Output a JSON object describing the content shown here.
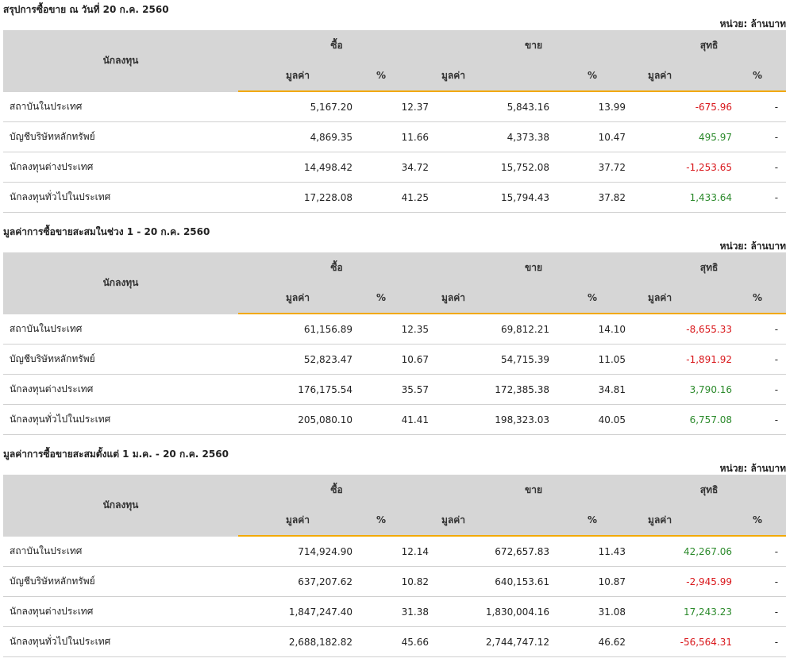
{
  "sections": [
    {
      "title": "สรุปการซื้อขาย ณ วันที่ 20 ก.ค. 2560",
      "unit": "หน่วย: ล้านบาท",
      "rows": [
        {
          "name": "สถาบันในประเทศ",
          "buy": "5,167.20",
          "buy_pct": "12.37",
          "sell": "5,843.16",
          "sell_pct": "13.99",
          "net": "-675.96",
          "net_pct": "-"
        },
        {
          "name": "บัญชีบริษัทหลักทรัพย์",
          "buy": "4,869.35",
          "buy_pct": "11.66",
          "sell": "4,373.38",
          "sell_pct": "10.47",
          "net": "495.97",
          "net_pct": "-"
        },
        {
          "name": "นักลงทุนต่างประเทศ",
          "buy": "14,498.42",
          "buy_pct": "34.72",
          "sell": "15,752.08",
          "sell_pct": "37.72",
          "net": "-1,253.65",
          "net_pct": "-"
        },
        {
          "name": "นักลงทุนทั่วไปในประเทศ",
          "buy": "17,228.08",
          "buy_pct": "41.25",
          "sell": "15,794.43",
          "sell_pct": "37.82",
          "net": "1,433.64",
          "net_pct": "-"
        }
      ]
    },
    {
      "title": "มูลค่าการซื้อขายสะสมในช่วง 1 - 20 ก.ค. 2560",
      "unit": "หน่วย: ล้านบาท",
      "rows": [
        {
          "name": "สถาบันในประเทศ",
          "buy": "61,156.89",
          "buy_pct": "12.35",
          "sell": "69,812.21",
          "sell_pct": "14.10",
          "net": "-8,655.33",
          "net_pct": "-"
        },
        {
          "name": "บัญชีบริษัทหลักทรัพย์",
          "buy": "52,823.47",
          "buy_pct": "10.67",
          "sell": "54,715.39",
          "sell_pct": "11.05",
          "net": "-1,891.92",
          "net_pct": "-"
        },
        {
          "name": "นักลงทุนต่างประเทศ",
          "buy": "176,175.54",
          "buy_pct": "35.57",
          "sell": "172,385.38",
          "sell_pct": "34.81",
          "net": "3,790.16",
          "net_pct": "-"
        },
        {
          "name": "นักลงทุนทั่วไปในประเทศ",
          "buy": "205,080.10",
          "buy_pct": "41.41",
          "sell": "198,323.03",
          "sell_pct": "40.05",
          "net": "6,757.08",
          "net_pct": "-"
        }
      ]
    },
    {
      "title": "มูลค่าการซื้อขายสะสมตั้งแต่ 1 ม.ค. - 20 ก.ค. 2560",
      "unit": "หน่วย: ล้านบาท",
      "rows": [
        {
          "name": "สถาบันในประเทศ",
          "buy": "714,924.90",
          "buy_pct": "12.14",
          "sell": "672,657.83",
          "sell_pct": "11.43",
          "net": "42,267.06",
          "net_pct": "-"
        },
        {
          "name": "บัญชีบริษัทหลักทรัพย์",
          "buy": "637,207.62",
          "buy_pct": "10.82",
          "sell": "640,153.61",
          "sell_pct": "10.87",
          "net": "-2,945.99",
          "net_pct": "-"
        },
        {
          "name": "นักลงทุนต่างประเทศ",
          "buy": "1,847,247.40",
          "buy_pct": "31.38",
          "sell": "1,830,004.16",
          "sell_pct": "31.08",
          "net": "17,243.23",
          "net_pct": "-"
        },
        {
          "name": "นักลงทุนทั่วไปในประเทศ",
          "buy": "2,688,182.82",
          "buy_pct": "45.66",
          "sell": "2,744,747.12",
          "sell_pct": "46.62",
          "net": "-56,564.31",
          "net_pct": "-"
        }
      ]
    }
  ],
  "headers": {
    "investor": "นักลงทุน",
    "buy": "ซื้อ",
    "sell": "ขาย",
    "net": "สุทธิ",
    "value": "มูลค่า",
    "pct": "%"
  },
  "colors": {
    "positive": "#2b8a2b",
    "negative": "#d9171b",
    "accent": "#f2a900",
    "header_bg": "#d6d6d6"
  }
}
